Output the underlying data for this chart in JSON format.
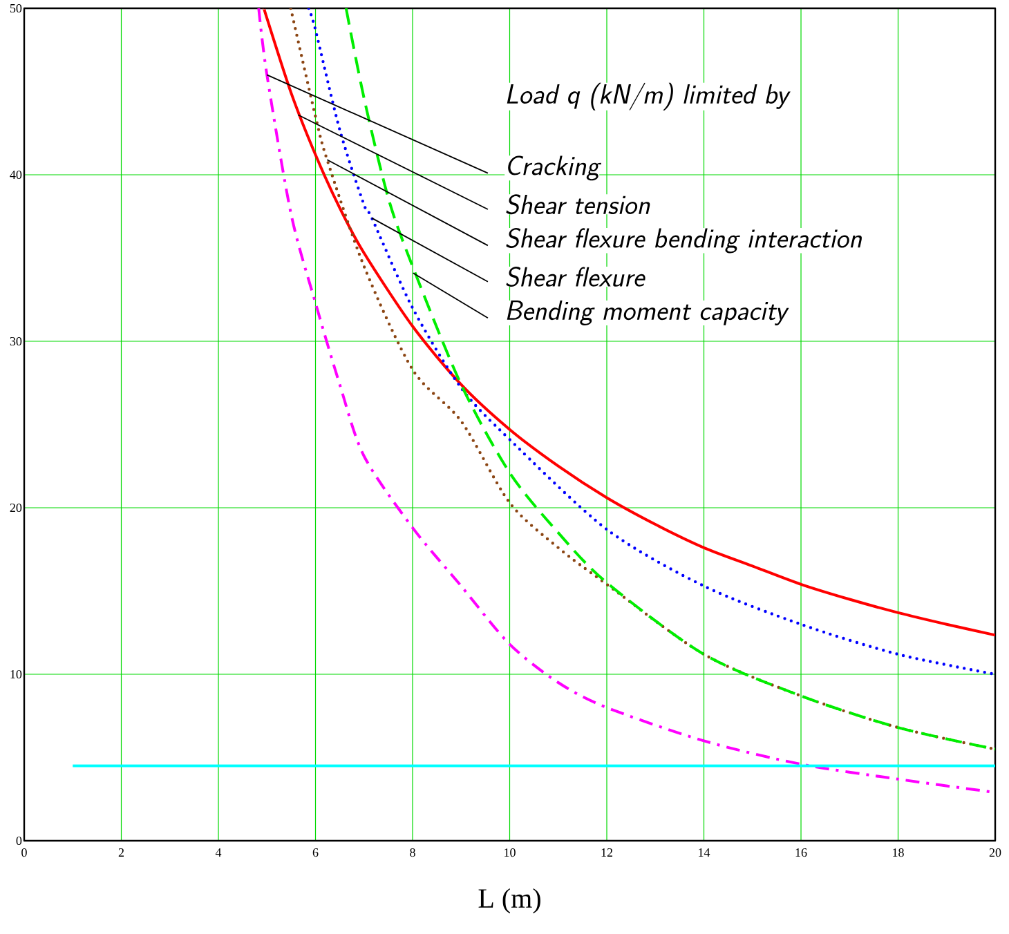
{
  "chart_data": {
    "type": "line",
    "xlabel": "L (m)",
    "xlim": [
      0,
      20
    ],
    "ylim": [
      0,
      50
    ],
    "xticks": [
      0,
      2,
      4,
      6,
      8,
      10,
      12,
      14,
      16,
      18,
      20
    ],
    "yticks": [
      0,
      10,
      20,
      30,
      40,
      50
    ],
    "grid": true,
    "marker": "none",
    "annotations": [
      "Load q (kN/m) limited by",
      {
        "text": "Cracking",
        "x": 5.0,
        "y": 46.0
      },
      {
        "text": "Shear tension",
        "x": 5.64,
        "y": 43.6
      },
      {
        "text": "Shear flexure bending interaction",
        "x": 6.24,
        "y": 40.9
      },
      {
        "text": "Shear flexure",
        "x": 7.16,
        "y": 37.4
      },
      {
        "text": "Bending moment capacity",
        "x": 8.01,
        "y": 34.1
      }
    ],
    "series": [
      {
        "color": "#ff00ff",
        "line_style": "dashdot",
        "x": [
          4.83,
          5,
          5.5,
          6,
          6.5,
          7,
          8,
          9,
          10,
          11,
          12,
          14,
          16,
          18,
          20
        ],
        "values": [
          50,
          46.0,
          37.6,
          32.3,
          27.4,
          23.1,
          18.8,
          15.3,
          11.8,
          9.5,
          8.0,
          6.0,
          4.6,
          3.7,
          2.9
        ]
      },
      {
        "color": "#ff0000",
        "line_style": "solid",
        "x": [
          4.94,
          5,
          5.5,
          6,
          6.5,
          7,
          8,
          9,
          10,
          11,
          12,
          13,
          14,
          15,
          16,
          17,
          18,
          19,
          20
        ],
        "values": [
          50,
          49.4,
          44.9,
          41.2,
          38.0,
          35.3,
          30.9,
          27.4,
          24.7,
          22.5,
          20.6,
          19.0,
          17.6,
          16.5,
          15.4,
          14.5,
          13.7,
          13.0,
          12.35
        ]
      },
      {
        "color": "#8b4513",
        "line_style": "dotted",
        "x": [
          5.49,
          6,
          6.24,
          7,
          8,
          9,
          10,
          11,
          12,
          14,
          16,
          18,
          20
        ],
        "values": [
          50,
          43.5,
          40.9,
          34.5,
          28.3,
          25.2,
          20.3,
          17.6,
          15.4,
          11.2,
          8.7,
          6.8,
          5.5
        ]
      },
      {
        "color": "#0000ff",
        "line_style": "dotted",
        "x": [
          5.86,
          6,
          6.5,
          7,
          7.16,
          8,
          9,
          10,
          12,
          14,
          16,
          18,
          20
        ],
        "values": [
          50,
          48.7,
          42.7,
          38.2,
          37.4,
          32.0,
          27.2,
          24.1,
          18.7,
          15.3,
          13.0,
          11.2,
          10.0
        ]
      },
      {
        "color": "#00ee00",
        "line_style": "dashed",
        "x": [
          6.63,
          7,
          7.5,
          8,
          9,
          10,
          11,
          12,
          14,
          16,
          18,
          20
        ],
        "values": [
          50,
          44.6,
          38.6,
          34.5,
          27.4,
          22.1,
          18.5,
          15.5,
          11.2,
          8.7,
          6.8,
          5.5
        ]
      },
      {
        "color": "#00ffff",
        "line_style": "solid",
        "x": [
          1,
          20
        ],
        "values": [
          4.5,
          4.5
        ]
      }
    ]
  }
}
